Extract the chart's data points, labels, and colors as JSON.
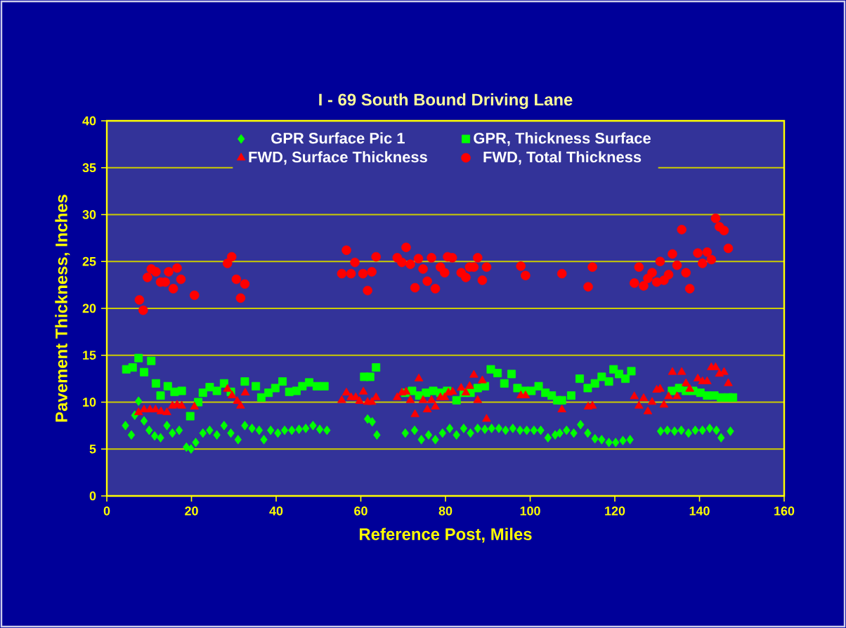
{
  "chart_data": {
    "type": "scatter",
    "title": "I - 69 South Bound Driving Lane",
    "xlabel": "Reference Post, Miles",
    "ylabel": "Pavement Thickness, Inches",
    "xlim": [
      0,
      160
    ],
    "ylim": [
      0,
      40
    ],
    "xticks": [
      0,
      20,
      40,
      60,
      80,
      100,
      120,
      140,
      160
    ],
    "yticks": [
      0,
      5,
      10,
      15,
      20,
      25,
      30,
      35,
      40
    ],
    "grid": "y",
    "legend": "top",
    "series": [
      {
        "name": "GPR Surface Pic 1",
        "color": "#00ff00",
        "marker": "diamond",
        "x": [
          4.4,
          5.8,
          6.6,
          7.5,
          8.8,
          10.0,
          11.3,
          12.7,
          14.2,
          15.5,
          17.1,
          18.8,
          19.9,
          21.0,
          22.7,
          24.3,
          26.0,
          27.7,
          29.3,
          31.0,
          32.6,
          34.3,
          36.0,
          37.1,
          38.7,
          40.4,
          42.0,
          43.7,
          45.4,
          47.0,
          48.7,
          50.3,
          52.0,
          61.6,
          62.7,
          63.8,
          70.5,
          72.7,
          74.3,
          76.0,
          77.6,
          79.3,
          81.0,
          82.6,
          84.3,
          85.9,
          87.6,
          89.3,
          90.9,
          92.6,
          94.2,
          95.9,
          97.6,
          99.2,
          100.9,
          102.5,
          104.2,
          105.9,
          107.0,
          108.6,
          110.3,
          111.9,
          113.6,
          115.3,
          116.9,
          118.6,
          120.2,
          121.9,
          123.6,
          130.8,
          132.4,
          134.1,
          135.7,
          137.4,
          139.0,
          140.7,
          142.4,
          144.0,
          145.1,
          147.3
        ],
        "values": [
          7.5,
          6.5,
          8.6,
          10.1,
          8.0,
          7.0,
          6.4,
          6.2,
          7.5,
          6.7,
          7.0,
          5.2,
          5.0,
          5.7,
          6.7,
          7.0,
          6.5,
          7.5,
          6.7,
          6.0,
          7.5,
          7.2,
          7.0,
          6.0,
          7.0,
          6.7,
          7.0,
          7.0,
          7.1,
          7.2,
          7.5,
          7.1,
          7.0,
          8.2,
          7.9,
          6.5,
          6.7,
          7.0,
          6.0,
          6.5,
          6.0,
          6.7,
          7.2,
          6.5,
          7.2,
          6.7,
          7.2,
          7.1,
          7.2,
          7.2,
          7.0,
          7.2,
          7.0,
          7.0,
          7.0,
          7.0,
          6.2,
          6.5,
          6.7,
          7.0,
          6.7,
          7.6,
          6.7,
          6.1,
          6.0,
          5.7,
          5.7,
          5.9,
          6.0,
          6.9,
          7.0,
          6.9,
          7.0,
          6.7,
          7.0,
          7.0,
          7.2,
          7.0,
          6.2,
          6.9
        ]
      },
      {
        "name": "GPR, Thickness Surface",
        "color": "#00ff00",
        "marker": "square",
        "x": [
          4.6,
          6.1,
          7.5,
          8.8,
          10.5,
          11.6,
          12.7,
          14.4,
          16.0,
          17.7,
          19.7,
          21.6,
          22.7,
          24.3,
          26.0,
          27.7,
          29.3,
          32.6,
          35.2,
          36.5,
          38.2,
          39.8,
          41.5,
          43.1,
          44.8,
          46.2,
          47.8,
          49.6,
          51.4,
          60.8,
          62.2,
          63.6,
          70.5,
          72.1,
          73.8,
          75.4,
          77.1,
          78.8,
          80.4,
          82.6,
          84.3,
          85.9,
          87.6,
          89.3,
          90.7,
          92.3,
          93.9,
          95.6,
          97.0,
          98.7,
          100.3,
          102.0,
          103.6,
          105.1,
          106.4,
          107.5,
          109.7,
          111.7,
          113.6,
          115.3,
          116.9,
          118.6,
          119.7,
          121.0,
          122.5,
          123.9,
          133.5,
          135.2,
          136.8,
          138.5,
          140.2,
          141.8,
          143.5,
          145.1,
          146.8,
          147.9
        ],
        "values": [
          13.5,
          13.7,
          14.7,
          13.2,
          14.4,
          12.0,
          10.7,
          11.7,
          11.1,
          11.2,
          8.5,
          10.0,
          11.0,
          11.6,
          11.2,
          12.0,
          11.1,
          12.2,
          11.7,
          10.5,
          11.0,
          11.5,
          12.2,
          11.1,
          11.2,
          11.7,
          12.1,
          11.7,
          11.7,
          12.7,
          12.7,
          13.7,
          11.0,
          11.2,
          10.7,
          11.0,
          11.2,
          11.0,
          11.2,
          10.2,
          11.0,
          11.0,
          11.5,
          11.7,
          13.5,
          13.1,
          12.0,
          13.0,
          11.5,
          11.2,
          11.2,
          11.7,
          11.0,
          10.7,
          10.2,
          10.2,
          10.7,
          12.5,
          11.5,
          12.0,
          12.7,
          12.2,
          13.5,
          13.0,
          12.5,
          13.3,
          11.2,
          11.5,
          11.2,
          11.2,
          11.0,
          10.7,
          10.7,
          10.5,
          10.5,
          10.5
        ]
      },
      {
        "name": "FWD, Surface Thickness",
        "color": "#ff0000",
        "marker": "triangle",
        "x": [
          7.5,
          8.8,
          10.2,
          11.5,
          12.8,
          14.2,
          15.5,
          16.6,
          17.7,
          20.7,
          28.5,
          29.6,
          30.8,
          31.6,
          32.7,
          55.5,
          56.6,
          57.7,
          58.8,
          59.7,
          60.6,
          61.6,
          62.6,
          63.6,
          68.6,
          69.7,
          70.7,
          71.7,
          72.8,
          73.7,
          74.7,
          75.7,
          76.7,
          77.6,
          78.8,
          79.8,
          80.7,
          81.7,
          83.7,
          84.8,
          85.7,
          86.7,
          87.6,
          88.7,
          89.7,
          97.8,
          98.9,
          107.5,
          113.7,
          114.7,
          124.6,
          125.7,
          126.8,
          127.8,
          128.8,
          129.9,
          130.7,
          131.6,
          132.7,
          133.6,
          134.7,
          135.8,
          136.8,
          137.7,
          139.6,
          140.7,
          141.8,
          142.8,
          143.8,
          144.7,
          145.8,
          146.8
        ],
        "values": [
          8.9,
          9.2,
          9.2,
          9.2,
          9.0,
          8.9,
          9.6,
          9.7,
          9.6,
          9.5,
          11.4,
          10.7,
          10.1,
          9.6,
          11.0,
          10.2,
          11.0,
          10.5,
          10.5,
          10.1,
          11.1,
          10.0,
          10.0,
          10.5,
          10.5,
          11.0,
          11.1,
          10.2,
          8.7,
          12.5,
          10.2,
          9.2,
          10.2,
          9.5,
          10.5,
          10.5,
          11.0,
          11.1,
          11.5,
          11.0,
          11.7,
          12.9,
          10.2,
          12.3,
          8.2,
          10.7,
          10.7,
          9.2,
          9.5,
          9.6,
          10.6,
          9.6,
          10.4,
          9.0,
          10.0,
          11.3,
          11.4,
          9.7,
          10.6,
          13.2,
          10.6,
          13.2,
          12.0,
          11.4,
          12.5,
          12.2,
          12.2,
          13.7,
          13.7,
          13.0,
          13.2,
          12.0
        ]
      },
      {
        "name": "FWD, Total Thickness",
        "color": "#ff0000",
        "marker": "circle",
        "x": [
          7.7,
          8.6,
          9.6,
          10.5,
          11.6,
          12.7,
          13.8,
          14.6,
          15.7,
          16.6,
          17.5,
          20.7,
          28.5,
          29.5,
          30.6,
          31.6,
          32.6,
          55.5,
          56.6,
          57.7,
          58.6,
          60.5,
          61.6,
          62.6,
          63.6,
          68.6,
          69.7,
          70.7,
          71.7,
          72.8,
          73.6,
          74.7,
          75.7,
          76.7,
          77.6,
          78.8,
          79.8,
          80.5,
          81.6,
          83.7,
          84.8,
          85.7,
          86.7,
          87.6,
          88.7,
          89.7,
          97.8,
          98.9,
          107.5,
          113.7,
          114.7,
          124.6,
          125.7,
          126.8,
          127.8,
          128.8,
          129.9,
          130.7,
          131.6,
          132.7,
          133.6,
          134.7,
          135.8,
          136.8,
          137.7,
          139.6,
          140.7,
          141.8,
          142.8,
          143.8,
          144.7,
          145.8,
          146.8
        ],
        "values": [
          20.9,
          19.8,
          23.3,
          24.2,
          23.9,
          22.8,
          22.8,
          23.9,
          22.1,
          24.3,
          23.1,
          21.4,
          24.8,
          25.5,
          23.1,
          21.1,
          22.6,
          23.7,
          26.2,
          23.7,
          24.9,
          23.7,
          21.9,
          23.9,
          25.5,
          25.4,
          24.9,
          26.5,
          24.7,
          22.2,
          25.3,
          24.2,
          22.9,
          25.4,
          22.1,
          24.4,
          23.8,
          25.5,
          25.4,
          23.8,
          23.3,
          24.4,
          24.4,
          25.4,
          23.0,
          24.4,
          24.5,
          23.5,
          23.7,
          22.3,
          24.4,
          22.7,
          24.4,
          22.4,
          23.2,
          23.8,
          22.8,
          25.0,
          23.0,
          23.6,
          25.8,
          24.6,
          28.4,
          23.8,
          22.1,
          25.9,
          24.8,
          26.0,
          25.2,
          29.6,
          28.7,
          28.3,
          26.4
        ]
      }
    ]
  }
}
